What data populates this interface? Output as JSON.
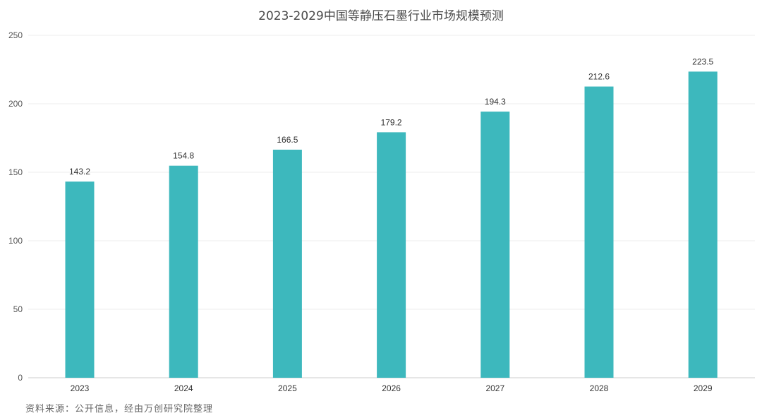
{
  "chart_data": {
    "type": "bar",
    "title": "2023-2029中国等静压石墨行业市场规模预测",
    "xlabel": "",
    "ylabel": "",
    "categories": [
      "2023",
      "2024",
      "2025",
      "2026",
      "2027",
      "2028",
      "2029"
    ],
    "values": [
      143.2,
      154.8,
      166.5,
      179.2,
      194.3,
      212.6,
      223.5
    ],
    "value_labels": [
      "143.2",
      "154.8",
      "166.5",
      "179.2",
      "194.3",
      "212.6",
      "223.5"
    ],
    "ylim": [
      0,
      250
    ],
    "yticks": [
      0,
      50,
      100,
      150,
      200,
      250
    ],
    "ytick_labels": [
      "0",
      "50",
      "100",
      "150",
      "200",
      "250"
    ],
    "grid": true,
    "legend": "none",
    "bar_color": "#3db8bd"
  },
  "source": "资料来源：公开信息，经由万创研究院整理"
}
